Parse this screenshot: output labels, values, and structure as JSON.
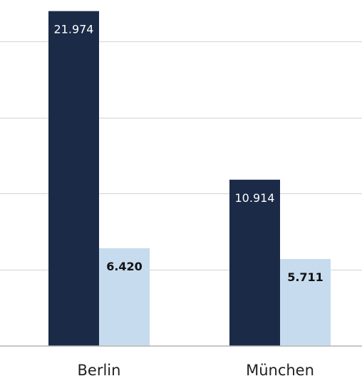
{
  "chart_data": {
    "type": "bar",
    "categories": [
      "Berlin",
      "München"
    ],
    "series": [
      {
        "values": [
          21974,
          10914
        ],
        "labels": [
          "21.974",
          "10.914"
        ],
        "color": "#1b2a47"
      },
      {
        "values": [
          6420,
          5711
        ],
        "labels": [
          "6.420",
          "5.711"
        ],
        "color": "#c6dcee"
      }
    ],
    "ylim": [
      0,
      22000
    ],
    "grid": true,
    "xlabel": "",
    "ylabel": "",
    "title": ""
  }
}
